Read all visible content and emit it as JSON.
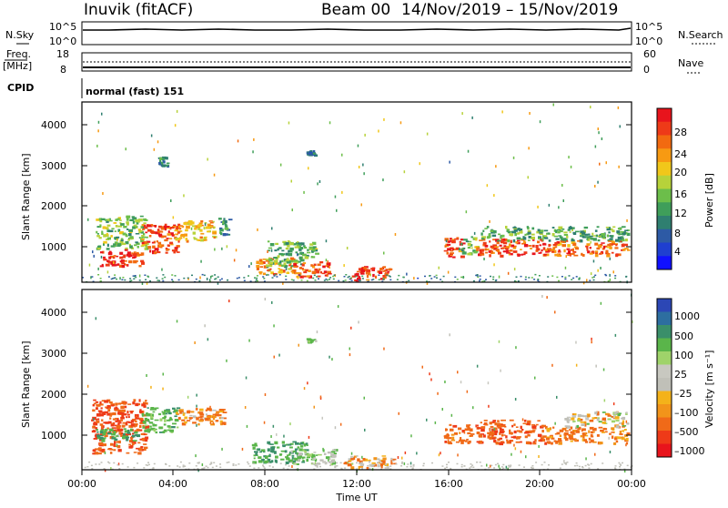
{
  "header": {
    "station": "Inuvik (fitACF)",
    "beam": "Beam 00",
    "date_range": "14/Nov/2019 – 15/Nov/2019"
  },
  "top_panels": {
    "nsky_label": "N.Sky",
    "nsky_ticks": [
      "10^5",
      "10^0"
    ],
    "nsearch_label": "N.Search",
    "nsearch_ticks": [
      "10^5",
      "10^0"
    ],
    "freq_label_1": "Freq.",
    "freq_label_2": "[MHz]",
    "freq_ticks": [
      "18",
      "8"
    ],
    "nave_label": "Nave",
    "nave_ticks": [
      "60",
      "0"
    ],
    "cpid_label": "CPID",
    "cpid_value": "normal (fast) 151"
  },
  "x_axis": {
    "label": "Time UT",
    "ticks": [
      "00:00",
      "04:00",
      "08:00",
      "12:00",
      "16:00",
      "20:00",
      "00:00"
    ]
  },
  "panel_power": {
    "y_label": "Slant Range [km]",
    "y_ticks": [
      "4000",
      "3000",
      "2000",
      "1000"
    ],
    "cbar_label": "Power [dB]",
    "cbar_ticks": [
      "28",
      "24",
      "20",
      "16",
      "12",
      "8",
      "4"
    ],
    "cbar_colors": [
      "#e8141c",
      "#ee3a18",
      "#f26a10",
      "#f79a12",
      "#f1c71a",
      "#b7d23a",
      "#6cbe4a",
      "#3f9e5a",
      "#2f7f70",
      "#2d5aa5",
      "#1f3fd0",
      "#1010ff"
    ]
  },
  "panel_velocity": {
    "y_label": "Slant Range [km]",
    "y_ticks": [
      "4000",
      "3000",
      "2000",
      "1000"
    ],
    "cbar_label": "Velocity [m s⁻¹]",
    "cbar_ticks": [
      "1000",
      "500",
      "100",
      "25",
      "–25",
      "–100",
      "–500",
      "–1000"
    ],
    "cbar_colors": [
      "#2c47b5",
      "#2d6ea0",
      "#3a8f6a",
      "#5ab54a",
      "#9fd36a",
      "#c8c8c0",
      "#c0c0b8",
      "#f4b21a",
      "#f2941a",
      "#f06a18",
      "#ee3a18",
      "#e8141c"
    ]
  },
  "chart_data": {
    "type": "heatmap",
    "x_unit": "hours UT",
    "xlim": [
      0,
      24
    ],
    "ylim": [
      200,
      4500
    ],
    "grid": false,
    "power_regions": [
      {
        "t0": 0.7,
        "t1": 2.6,
        "r0": 600,
        "r1": 1000,
        "power": 28
      },
      {
        "t0": 0.6,
        "t1": 2.8,
        "r0": 1000,
        "r1": 1800,
        "power": 14
      },
      {
        "t0": 2.6,
        "t1": 4.2,
        "r0": 900,
        "r1": 1600,
        "power": 26
      },
      {
        "t0": 4.0,
        "t1": 5.8,
        "r0": 1200,
        "r1": 1700,
        "power": 20
      },
      {
        "t0": 5.8,
        "t1": 6.4,
        "r0": 1350,
        "r1": 1750,
        "power": 10
      },
      {
        "t0": 7.6,
        "t1": 9.2,
        "r0": 400,
        "r1": 800,
        "power": 22
      },
      {
        "t0": 8.0,
        "t1": 9.6,
        "r0": 600,
        "r1": 1200,
        "power": 12
      },
      {
        "t0": 9.2,
        "t1": 10.8,
        "r0": 350,
        "r1": 700,
        "power": 26
      },
      {
        "t0": 9.4,
        "t1": 10.2,
        "r0": 800,
        "r1": 1200,
        "power": 14
      },
      {
        "t0": 11.6,
        "t1": 13.4,
        "r0": 250,
        "r1": 600,
        "power": 28
      },
      {
        "t0": 15.8,
        "t1": 16.6,
        "r0": 800,
        "r1": 1300,
        "power": 26
      },
      {
        "t0": 16.4,
        "t1": 17.2,
        "r0": 900,
        "r1": 1300,
        "power": 14
      },
      {
        "t0": 17.2,
        "t1": 20.2,
        "r0": 850,
        "r1": 1250,
        "power": 27
      },
      {
        "t0": 17.4,
        "t1": 23.8,
        "r0": 1200,
        "r1": 1550,
        "power": 12
      },
      {
        "t0": 20.2,
        "t1": 23.8,
        "r0": 850,
        "r1": 1200,
        "power": 25
      },
      {
        "t0": 3.3,
        "t1": 3.7,
        "r0": 3000,
        "r1": 3200,
        "power": 9
      },
      {
        "t0": 9.8,
        "t1": 10.2,
        "r0": 3250,
        "r1": 3350,
        "power": 8
      }
    ],
    "velocity_regions": [
      {
        "t0": 0.4,
        "t1": 2.8,
        "r0": 600,
        "r1": 1900,
        "velocity": -300
      },
      {
        "t0": 0.6,
        "t1": 2.4,
        "r0": 900,
        "r1": 1200,
        "velocity": 300
      },
      {
        "t0": 2.6,
        "t1": 4.2,
        "r0": 1100,
        "r1": 1700,
        "velocity": 200
      },
      {
        "t0": 4.0,
        "t1": 6.2,
        "r0": 1300,
        "r1": 1700,
        "velocity": -100
      },
      {
        "t0": 7.4,
        "t1": 9.8,
        "r0": 400,
        "r1": 900,
        "velocity": 300
      },
      {
        "t0": 9.0,
        "t1": 11.0,
        "r0": 350,
        "r1": 700,
        "velocity": 100
      },
      {
        "t0": 11.4,
        "t1": 13.6,
        "r0": 250,
        "r1": 550,
        "velocity": -60
      },
      {
        "t0": 15.8,
        "t1": 17.0,
        "r0": 850,
        "r1": 1300,
        "velocity": -200
      },
      {
        "t0": 17.2,
        "t1": 20.2,
        "r0": 850,
        "r1": 1400,
        "velocity": -250
      },
      {
        "t0": 20.2,
        "t1": 23.8,
        "r0": 850,
        "r1": 1250,
        "velocity": -150
      },
      {
        "t0": 21.0,
        "t1": 23.8,
        "r0": 1250,
        "r1": 1600,
        "velocity": 0
      },
      {
        "t0": 9.8,
        "t1": 10.2,
        "r0": 3250,
        "r1": 3350,
        "velocity": 150
      }
    ]
  }
}
